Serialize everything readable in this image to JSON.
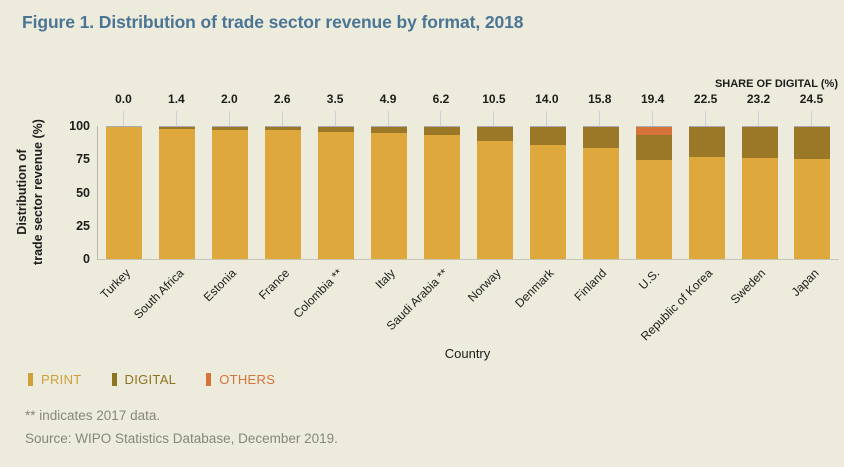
{
  "figure_title": "Figure 1. Distribution of trade sector revenue by format, 2018",
  "top_axis_label": "SHARE OF DIGITAL (%)",
  "footnotes": [
    "** indicates 2017 data.",
    "Source: WIPO Statistics Database, December 2019."
  ],
  "colors": {
    "background": "#ecebdc",
    "title": "#4b7595",
    "print": "#dfa83d",
    "digital": "#9a7827",
    "others": "#d5733a",
    "axis": "#b9b9ab",
    "footnote_text": "#86867c"
  },
  "chart_data": {
    "type": "bar",
    "stacked": true,
    "title": "Figure 1. Distribution of trade sector revenue by format, 2018",
    "xlabel": "Country",
    "ylabel_lines": [
      "Distribution of",
      "trade sector revenue (%)"
    ],
    "ylim": [
      0,
      100
    ],
    "yticks": [
      0,
      25,
      50,
      75,
      100
    ],
    "grid": false,
    "legend_position": "bottom-left",
    "top_axis_label": "SHARE OF DIGITAL (%)",
    "categories": [
      "Turkey",
      "South Africa",
      "Estonia",
      "France",
      "Colombia **",
      "Italy",
      "Saudi Arabia **",
      "Norway",
      "Denmark",
      "Finland",
      "U.S.",
      "Republic of Korea",
      "Sweden",
      "Japan"
    ],
    "share_of_digital": [
      "0.0",
      "1.4",
      "2.0",
      "2.6",
      "3.5",
      "4.9",
      "6.2",
      "10.5",
      "14.0",
      "15.8",
      "19.4",
      "22.5",
      "23.2",
      "24.5"
    ],
    "series": [
      {
        "name": "PRINT",
        "color": "#dfa83d",
        "values": [
          100,
          98.6,
          98.0,
          97.4,
          96.5,
          95.1,
          93.8,
          89.5,
          86.0,
          84.2,
          74.8,
          77.5,
          76.8,
          75.5
        ]
      },
      {
        "name": "DIGITAL",
        "color": "#9a7827",
        "values": [
          0,
          1.4,
          2.0,
          2.6,
          3.5,
          4.9,
          6.2,
          10.5,
          14.0,
          15.8,
          19.4,
          22.5,
          23.2,
          24.5
        ]
      },
      {
        "name": "OTHERS",
        "color": "#d5733a",
        "values": [
          0,
          0,
          0,
          0,
          0,
          0,
          0,
          0,
          0,
          0,
          5.8,
          0,
          0,
          0
        ]
      }
    ],
    "legend": [
      {
        "label": "PRINT",
        "color": "#cfa039"
      },
      {
        "label": "DIGITAL",
        "color": "#8d741f"
      },
      {
        "label": "OTHERS",
        "color": "#d5733a"
      }
    ]
  }
}
